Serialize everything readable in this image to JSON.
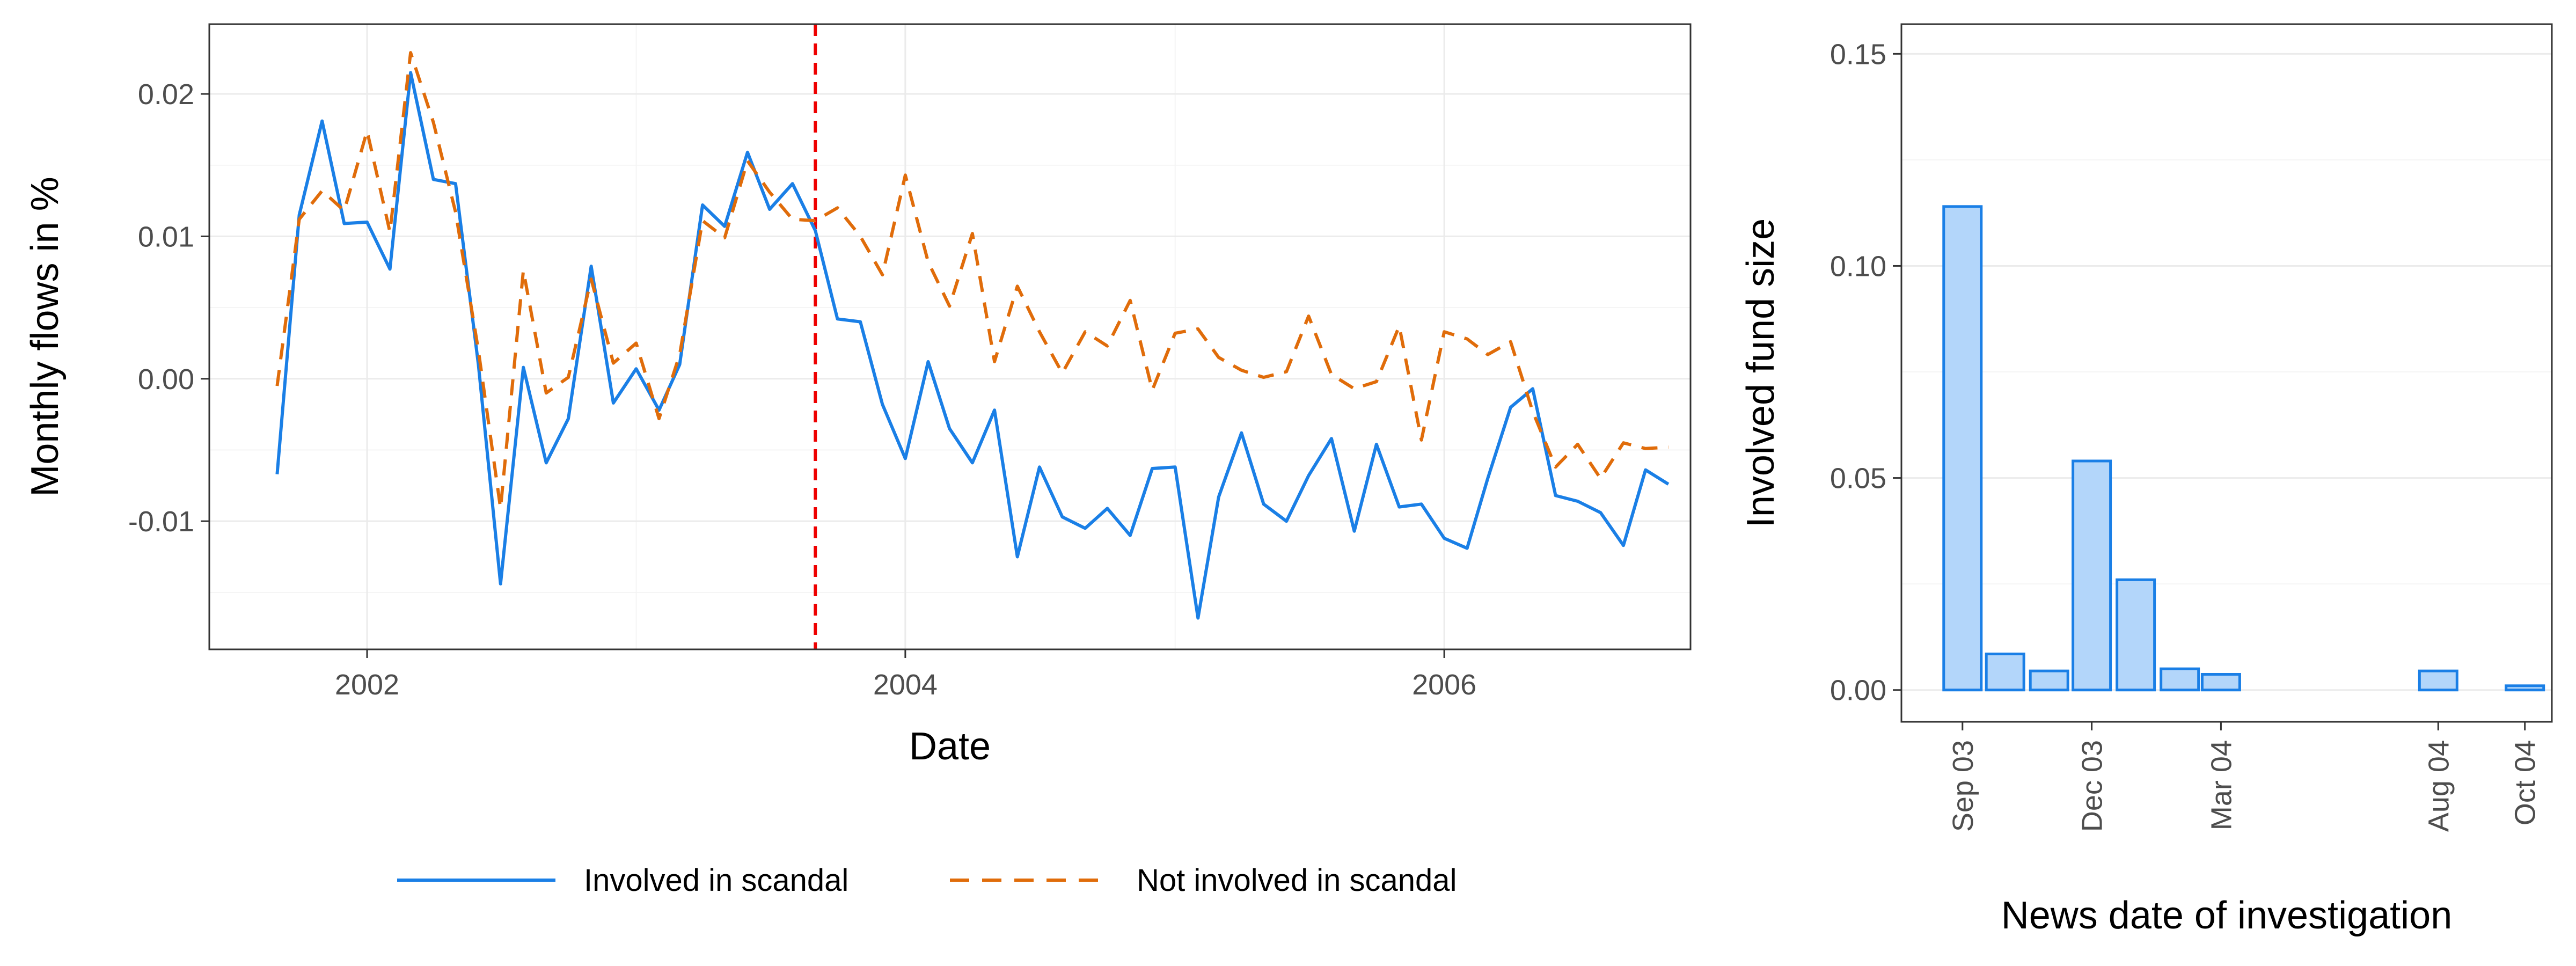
{
  "chart_data": [
    {
      "type": "line",
      "xlabel": "Date",
      "ylabel": "Monthly flows in %",
      "xlim": [
        "2001-06-01",
        "2006-12-01"
      ],
      "ylim": [
        -0.019,
        0.0249
      ],
      "x_ticks": [
        "2002",
        "2004",
        "2006"
      ],
      "y_ticks": [
        {
          "value": 0.02,
          "label": "0.02"
        },
        {
          "value": 0.01,
          "label": "0.01"
        },
        {
          "value": 0.0,
          "label": "0.00"
        },
        {
          "value": -0.01,
          "label": "-0.01"
        }
      ],
      "grid": true,
      "legend_position": "bottom",
      "annotations": [
        {
          "kind": "vertical-line",
          "x": "2003-09-01",
          "style": "dashed",
          "color": "#ee0000"
        }
      ],
      "series": [
        {
          "name": "Involved in scandal",
          "color": "#1a7fe6",
          "style": "solid",
          "points": [
            [
              "2001-09",
              -0.0067
            ],
            [
              "2001-10",
              0.0115
            ],
            [
              "2001-11",
              0.0181
            ],
            [
              "2001-12",
              0.0109
            ],
            [
              "2002-01",
              0.011
            ],
            [
              "2002-02",
              0.0077
            ],
            [
              "2002-03",
              0.0215
            ],
            [
              "2002-04",
              0.014
            ],
            [
              "2002-05",
              0.0137
            ],
            [
              "2002-06",
              0.001
            ],
            [
              "2002-07",
              -0.0144
            ],
            [
              "2002-08",
              0.0008
            ],
            [
              "2002-09",
              -0.0059
            ],
            [
              "2002-10",
              -0.0028
            ],
            [
              "2002-11",
              0.0079
            ],
            [
              "2002-12",
              -0.0017
            ],
            [
              "2003-01",
              0.0007
            ],
            [
              "2003-02",
              -0.0022
            ],
            [
              "2003-03",
              0.001
            ],
            [
              "2003-04",
              0.0122
            ],
            [
              "2003-05",
              0.0107
            ],
            [
              "2003-06",
              0.0159
            ],
            [
              "2003-07",
              0.0119
            ],
            [
              "2003-08",
              0.0137
            ],
            [
              "2003-09",
              0.0104
            ],
            [
              "2003-10",
              0.0042
            ],
            [
              "2003-11",
              0.004
            ],
            [
              "2003-12",
              -0.0018
            ],
            [
              "2004-01",
              -0.0056
            ],
            [
              "2004-02",
              0.0012
            ],
            [
              "2004-03",
              -0.0035
            ],
            [
              "2004-04",
              -0.0059
            ],
            [
              "2004-05",
              -0.0022
            ],
            [
              "2004-06",
              -0.0125
            ],
            [
              "2004-07",
              -0.0062
            ],
            [
              "2004-08",
              -0.0097
            ],
            [
              "2004-09",
              -0.0105
            ],
            [
              "2004-10",
              -0.0091
            ],
            [
              "2004-11",
              -0.011
            ],
            [
              "2004-12",
              -0.0063
            ],
            [
              "2005-01",
              -0.0062
            ],
            [
              "2005-02",
              -0.0168
            ],
            [
              "2005-03",
              -0.0083
            ],
            [
              "2005-04",
              -0.0038
            ],
            [
              "2005-05",
              -0.0088
            ],
            [
              "2005-06",
              -0.01
            ],
            [
              "2005-07",
              -0.0068
            ],
            [
              "2005-08",
              -0.0042
            ],
            [
              "2005-09",
              -0.0107
            ],
            [
              "2005-10",
              -0.0046
            ],
            [
              "2005-11",
              -0.009
            ],
            [
              "2005-12",
              -0.0088
            ],
            [
              "2006-01",
              -0.0112
            ],
            [
              "2006-02",
              -0.0119
            ],
            [
              "2006-03",
              -0.007
            ],
            [
              "2006-04",
              -0.002
            ],
            [
              "2006-05",
              -0.0007
            ],
            [
              "2006-06",
              -0.0082
            ],
            [
              "2006-07",
              -0.0086
            ],
            [
              "2006-08",
              -0.0094
            ],
            [
              "2006-09",
              -0.0117
            ],
            [
              "2006-10",
              -0.0064
            ],
            [
              "2006-11",
              -0.0074
            ]
          ]
        },
        {
          "name": "Not involved in scandal",
          "color": "#e06c0a",
          "style": "dashed",
          "points": [
            [
              "2001-09",
              -0.0005
            ],
            [
              "2001-10",
              0.0112
            ],
            [
              "2001-11",
              0.0132
            ],
            [
              "2001-12",
              0.0118
            ],
            [
              "2002-01",
              0.0174
            ],
            [
              "2002-02",
              0.0103
            ],
            [
              "2002-03",
              0.0229
            ],
            [
              "2002-04",
              0.018
            ],
            [
              "2002-05",
              0.0117
            ],
            [
              "2002-06",
              0.002
            ],
            [
              "2002-07",
              -0.0091
            ],
            [
              "2002-08",
              0.0076
            ],
            [
              "2002-09",
              -0.001
            ],
            [
              "2002-10",
              0.0001
            ],
            [
              "2002-11",
              0.007
            ],
            [
              "2002-12",
              0.0011
            ],
            [
              "2003-01",
              0.0025
            ],
            [
              "2003-02",
              -0.0028
            ],
            [
              "2003-03",
              0.0017
            ],
            [
              "2003-04",
              0.0111
            ],
            [
              "2003-05",
              0.0099
            ],
            [
              "2003-06",
              0.0153
            ],
            [
              "2003-07",
              0.0131
            ],
            [
              "2003-08",
              0.0112
            ],
            [
              "2003-09",
              0.0111
            ],
            [
              "2003-10",
              0.012
            ],
            [
              "2003-11",
              0.01
            ],
            [
              "2003-12",
              0.0073
            ],
            [
              "2004-01",
              0.0143
            ],
            [
              "2004-02",
              0.0082
            ],
            [
              "2004-03",
              0.0051
            ],
            [
              "2004-04",
              0.0102
            ],
            [
              "2004-05",
              0.0012
            ],
            [
              "2004-06",
              0.0065
            ],
            [
              "2004-07",
              0.0033
            ],
            [
              "2004-08",
              0.0004
            ],
            [
              "2004-09",
              0.0033
            ],
            [
              "2004-10",
              0.0023
            ],
            [
              "2004-11",
              0.0055
            ],
            [
              "2004-12",
              -0.0008
            ],
            [
              "2005-01",
              0.0032
            ],
            [
              "2005-02",
              0.0035
            ],
            [
              "2005-03",
              0.0015
            ],
            [
              "2005-04",
              0.0006
            ],
            [
              "2005-05",
              0.0001
            ],
            [
              "2005-06",
              0.0005
            ],
            [
              "2005-07",
              0.0044
            ],
            [
              "2005-08",
              0.0003
            ],
            [
              "2005-09",
              -0.0007
            ],
            [
              "2005-10",
              -0.0002
            ],
            [
              "2005-11",
              0.0037
            ],
            [
              "2005-12",
              -0.0043
            ],
            [
              "2006-01",
              0.0033
            ],
            [
              "2006-02",
              0.0028
            ],
            [
              "2006-03",
              0.0017
            ],
            [
              "2006-04",
              0.0026
            ],
            [
              "2006-05",
              -0.0023
            ],
            [
              "2006-06",
              -0.0062
            ],
            [
              "2006-07",
              -0.0046
            ],
            [
              "2006-08",
              -0.007
            ],
            [
              "2006-09",
              -0.0045
            ],
            [
              "2006-10",
              -0.0049
            ],
            [
              "2006-11",
              -0.0048
            ]
          ]
        }
      ]
    },
    {
      "type": "bar",
      "xlabel": "News date of investigation",
      "ylabel": "Involved fund size",
      "xlim": [
        "2003-08-03",
        "2004-11-03"
      ],
      "ylim": [
        -0.0075,
        0.157
      ],
      "x_ticks": [
        {
          "date": "2003-09-15",
          "label": "Sep 03"
        },
        {
          "date": "2003-12-15",
          "label": "Dec 03"
        },
        {
          "date": "2004-03-15",
          "label": "Mar 04"
        },
        {
          "date": "2004-08-15",
          "label": "Aug 04"
        },
        {
          "date": "2004-10-15",
          "label": "Oct 04"
        }
      ],
      "y_ticks": [
        {
          "value": 0.15,
          "label": "0.15"
        },
        {
          "value": 0.1,
          "label": "0.10"
        },
        {
          "value": 0.05,
          "label": "0.05"
        },
        {
          "value": 0.0,
          "label": "0.00"
        }
      ],
      "grid": true,
      "bar_fill": "#b3d6fa",
      "bar_stroke": "#1a7fe6",
      "bars": [
        {
          "date": "2003-09-15",
          "value": 0.114
        },
        {
          "date": "2003-10-15",
          "value": 0.0085
        },
        {
          "date": "2003-11-15",
          "value": 0.0045
        },
        {
          "date": "2003-12-15",
          "value": 0.054
        },
        {
          "date": "2004-01-15",
          "value": 0.026
        },
        {
          "date": "2004-02-15",
          "value": 0.005
        },
        {
          "date": "2004-03-15",
          "value": 0.0037
        },
        {
          "date": "2004-08-15",
          "value": 0.0045
        },
        {
          "date": "2004-10-15",
          "value": 0.001
        }
      ]
    }
  ]
}
